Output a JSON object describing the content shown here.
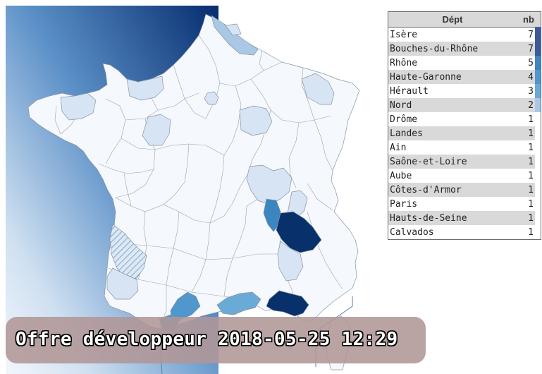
{
  "table": {
    "header_dept": "Dépt",
    "header_nb": "nb",
    "rows": [
      {
        "name": "Isère",
        "nb": "7",
        "color": "#3a5a9a"
      },
      {
        "name": "Bouches-du-Rhône",
        "nb": "7",
        "color": "#3a5a9a"
      },
      {
        "name": "Rhône",
        "nb": "5",
        "color": "#3b86c0"
      },
      {
        "name": "Haute-Garonne",
        "nb": "4",
        "color": "#4f97cc"
      },
      {
        "name": "Hérault",
        "nb": "3",
        "color": "#6aaad6"
      },
      {
        "name": "Nord",
        "nb": "2",
        "color": "#a9c8e6"
      },
      {
        "name": "Drôme",
        "nb": "1",
        "color": "#ffffff"
      },
      {
        "name": "Landes",
        "nb": "1",
        "color": "#ffffff"
      },
      {
        "name": "Ain",
        "nb": "1",
        "color": "#ffffff"
      },
      {
        "name": "Saône-et-Loire",
        "nb": "1",
        "color": "#ffffff"
      },
      {
        "name": "Aube",
        "nb": "1",
        "color": "#ffffff"
      },
      {
        "name": "Côtes-d'Armor",
        "nb": "1",
        "color": "#ffffff"
      },
      {
        "name": "Paris",
        "nb": "1",
        "color": "#ffffff"
      },
      {
        "name": "Hauts-de-Seine",
        "nb": "1",
        "color": "#ffffff"
      },
      {
        "name": "Calvados",
        "nb": "1",
        "color": "#ffffff"
      }
    ]
  },
  "banner": {
    "text": "Offre développeur 2018-05-25 12:29"
  },
  "colors": {
    "sea_dark": "#0a3a7a",
    "sea_light": "#eef4fb",
    "land": "#f5f8fd",
    "level_1": "#d6e4f3",
    "level_2": "#a9c8e6",
    "level_3": "#6aaad6",
    "level_4": "#4f97cc",
    "level_5": "#3b86c0",
    "level_7": "#08306b",
    "banner_bg": "#b09696"
  }
}
